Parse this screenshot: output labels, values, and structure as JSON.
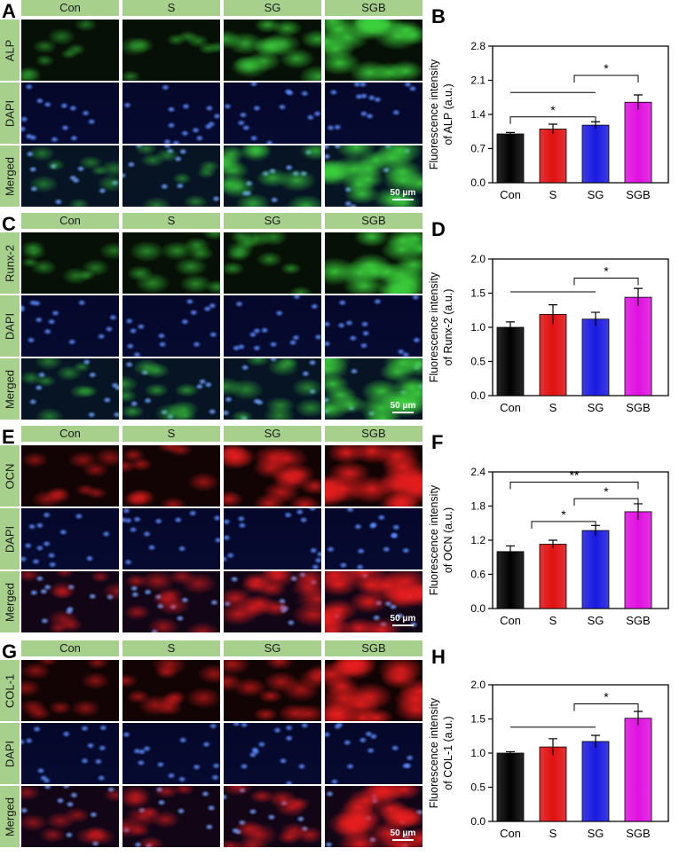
{
  "columns": [
    "Con",
    "S",
    "SG",
    "SGB"
  ],
  "scale_bar": "50 μm",
  "colors": {
    "header_bg": "#a7d08c",
    "Con": "#000000",
    "S": "#e01010",
    "SG": "#1a1ae0",
    "SGB": "#e010e0"
  },
  "micro_panels": [
    {
      "letter": "A",
      "rows": [
        "ALP",
        "DAPI",
        "Merged"
      ],
      "stain": "green",
      "levels": [
        0.25,
        0.3,
        0.65,
        0.9
      ]
    },
    {
      "letter": "C",
      "rows": [
        "Runx-2",
        "DAPI",
        "Merged"
      ],
      "stain": "green",
      "levels": [
        0.3,
        0.45,
        0.4,
        0.9
      ]
    },
    {
      "letter": "E",
      "rows": [
        "OCN",
        "DAPI",
        "Merged"
      ],
      "stain": "red",
      "levels": [
        0.35,
        0.45,
        0.7,
        0.95
      ]
    },
    {
      "letter": "G",
      "rows": [
        "COL-1",
        "DAPI",
        "Merged"
      ],
      "stain": "red",
      "levels": [
        0.35,
        0.45,
        0.55,
        0.9
      ]
    }
  ],
  "chart_data": [
    {
      "letter": "B",
      "type": "bar",
      "categories": [
        "Con",
        "S",
        "SG",
        "SGB"
      ],
      "values": [
        1.0,
        1.1,
        1.18,
        1.65
      ],
      "errors": [
        0.03,
        0.1,
        0.07,
        0.15
      ],
      "ylabel_lines": [
        "Fluorescence intensity",
        "of ALP (a.u.)"
      ],
      "ylim": [
        0,
        2.8
      ],
      "yticks": [
        "0.0",
        "0.7",
        "1.4",
        "2.1",
        "2.8"
      ],
      "annotations": [
        {
          "label": "*",
          "from": 0,
          "to": 2,
          "style": "bracket",
          "level": 1.35
        },
        {
          "label": "",
          "from": 0,
          "to": 2,
          "style": "line",
          "level": 1.85
        },
        {
          "label": "*",
          "from": 1.5,
          "to": 3,
          "style": "bracket",
          "level": 2.2
        }
      ]
    },
    {
      "letter": "D",
      "type": "bar",
      "categories": [
        "Con",
        "S",
        "SG",
        "SGB"
      ],
      "values": [
        1.0,
        1.19,
        1.12,
        1.44
      ],
      "errors": [
        0.08,
        0.14,
        0.1,
        0.13
      ],
      "ylabel_lines": [
        "Fluorescence intensity",
        "of Runx-2 (a.u.)"
      ],
      "ylim": [
        0,
        2.0
      ],
      "yticks": [
        "0.0",
        "0.5",
        "1.0",
        "1.5",
        "2.0"
      ],
      "annotations": [
        {
          "label": "",
          "from": 0,
          "to": 2,
          "style": "line",
          "level": 1.52
        },
        {
          "label": "*",
          "from": 1.5,
          "to": 3,
          "style": "bracket",
          "level": 1.72
        }
      ]
    },
    {
      "letter": "F",
      "type": "bar",
      "categories": [
        "Con",
        "S",
        "SG",
        "SGB"
      ],
      "values": [
        1.0,
        1.13,
        1.37,
        1.7
      ],
      "errors": [
        0.1,
        0.07,
        0.09,
        0.14
      ],
      "ylabel_lines": [
        "Fluorescence intensity",
        "of OCN (a.u.)"
      ],
      "ylim": [
        0,
        2.4
      ],
      "yticks": [
        "0.0",
        "0.6",
        "1.2",
        "1.8",
        "2.4"
      ],
      "annotations": [
        {
          "label": "*",
          "from": 0.5,
          "to": 2,
          "style": "bracket2",
          "level": 1.53
        },
        {
          "label": "*",
          "from": 1.5,
          "to": 3,
          "style": "bracket2",
          "level": 1.93
        },
        {
          "label": "**",
          "from": 0,
          "to": 3,
          "style": "bracket",
          "level": 2.22
        }
      ]
    },
    {
      "letter": "H",
      "type": "bar",
      "categories": [
        "Con",
        "S",
        "SG",
        "SGB"
      ],
      "values": [
        1.0,
        1.09,
        1.17,
        1.51
      ],
      "errors": [
        0.02,
        0.12,
        0.09,
        0.1
      ],
      "ylabel_lines": [
        "Fluorescence intensity",
        "of COL-1 (a.u.)"
      ],
      "ylim": [
        0,
        2.0
      ],
      "yticks": [
        "0.0",
        "0.5",
        "1.0",
        "1.5",
        "2.0"
      ],
      "annotations": [
        {
          "label": "",
          "from": 0,
          "to": 2,
          "style": "line",
          "level": 1.38
        },
        {
          "label": "*",
          "from": 1.5,
          "to": 3,
          "style": "bracket",
          "level": 1.72
        }
      ]
    }
  ]
}
